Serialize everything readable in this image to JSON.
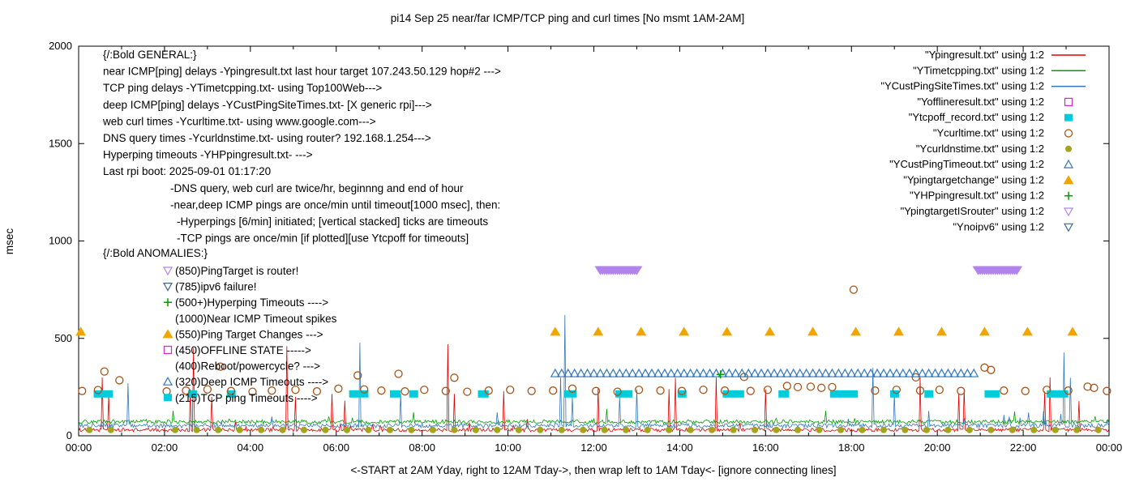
{
  "title": "pi14 Sep 25  near/far ICMP/TCP ping and curl times [No msmt 1AM-2AM]",
  "ylabel": "msec",
  "xlabel": "<-START at 2AM Yday, right to 12AM Tday->, then wrap left to 1AM Tday<- [ignore connecting lines]",
  "axes": {
    "y_ticks": [
      0,
      500,
      1000,
      1500,
      2000
    ],
    "x_tick_labels": [
      "00:00",
      "02:00",
      "04:00",
      "06:00",
      "08:00",
      "10:00",
      "12:00",
      "14:00",
      "16:00",
      "18:00",
      "20:00",
      "22:00",
      "00:00"
    ],
    "ylim": [
      0,
      2000
    ],
    "xlim_hours": [
      0,
      24
    ]
  },
  "legend": [
    {
      "key": "ypingresult",
      "label": "\"Ypingresult.txt\" using 1:2",
      "marker": "line",
      "color": "#e10000"
    },
    {
      "key": "ytimetcpping",
      "label": "\"YTimetcpping.txt\" using 1:2",
      "marker": "line",
      "color": "#009e00"
    },
    {
      "key": "ycustpingsitetimes",
      "label": "\"YCustPingSiteTimes.txt\" using 1:2",
      "marker": "line",
      "color": "#3377bb"
    },
    {
      "key": "yofflineresult",
      "label": "\"Yofflineresult.txt\" using 1:2",
      "marker": "square-open",
      "color": "#cc33cc"
    },
    {
      "key": "ytcpoff_record",
      "label": "\"Ytcpoff_record.txt\" using 1:2",
      "marker": "square-filled",
      "color": "#00ccdd"
    },
    {
      "key": "ycurltime",
      "label": "\"Ycurltime.txt\" using 1:2",
      "marker": "circle-open",
      "color": "#aa5518"
    },
    {
      "key": "ycurldnstime",
      "label": "\"Ycurldnstime.txt\" using 1:2",
      "marker": "circle-filled",
      "color": "#a3a51c"
    },
    {
      "key": "ycustpingtimeout",
      "label": "\"YCustPingTimeout.txt\" using 1:2",
      "marker": "triangle-up-open",
      "color": "#3377bb"
    },
    {
      "key": "ypingtargetchange",
      "label": "\"Ypingtargetchange\" using 1:2",
      "marker": "triangle-up-filled",
      "color": "#f0a500"
    },
    {
      "key": "yhppingresult",
      "label": "\"YHPpingresult.txt\" using 1:2",
      "marker": "plus",
      "color": "#009e00"
    },
    {
      "key": "ypingtargetisrouter",
      "label": "\"YpingtargetISrouter\" using 1:2",
      "marker": "triangle-down-open",
      "color": "#b084ec"
    },
    {
      "key": "ynoipv6",
      "label": "\"Ynoipv6\" using 1:2",
      "marker": "triangle-down-open",
      "color": "#406894"
    }
  ],
  "annotations": {
    "general": [
      {
        "t": "{/:Bold GENERAL:}",
        "i": 0
      },
      {
        "t": "near ICMP[ping] delays -Ypingresult.txt last hour target 107.243.50.129 hop#2 --->",
        "i": 0
      },
      {
        "t": "TCP ping delays -YTimetcpping.txt- using Top100Web--->",
        "i": 0
      },
      {
        "t": "deep ICMP[ping] delays -YCustPingSiteTimes.txt- [X generic rpi]--->",
        "i": 0
      },
      {
        "t": "web curl times -Ycurltime.txt- using www.google.com--->",
        "i": 0
      },
      {
        "t": "DNS query times -Ycurldnstime.txt- using router? 192.168.1.254--->",
        "i": 0
      },
      {
        "t": "Hyperping timeouts -YHPpingresult.txt- --->",
        "i": 0
      },
      {
        "t": "Last rpi boot: 2025-09-01 01:17:20",
        "i": 0
      },
      {
        "t": "-DNS query, web curl are twice/hr, beginnng and end of hour",
        "i": 1
      },
      {
        "t": "-near,deep ICMP pings are once/min until timeout[1000 msec], then:",
        "i": 1
      },
      {
        "t": "-Hyperpings [6/min] initiated; [vertical stacked] ticks are timeouts",
        "i": 2
      },
      {
        "t": "-TCP pings are once/min [if plotted][use Ytcpoff for timeouts]",
        "i": 2
      }
    ],
    "anomalies_header": "{/:Bold ANOMALIES:}",
    "anomalies": [
      {
        "icon": "triangle-down-open",
        "icon_color": "#b084ec",
        "text": "(850)PingTarget is router!"
      },
      {
        "icon": "triangle-down-open",
        "icon_color": "#406894",
        "text": "(785)ipv6 failure!"
      },
      {
        "icon": "plus",
        "icon_color": "#009e00",
        "text": "(500+)Hyperping Timeouts ---->"
      },
      {
        "icon": "none",
        "icon_color": "",
        "text": "(1000)Near ICMP Timeout spikes"
      },
      {
        "icon": "triangle-up-filled",
        "icon_color": "#f0a500",
        "text": "(550)Ping Target Changes --->"
      },
      {
        "icon": "square-open",
        "icon_color": "#cc33cc",
        "text": "(450)OFFLINE STATE ----->"
      },
      {
        "icon": "none",
        "icon_color": "",
        "text": "(400)Reboot/powercycle? --->"
      },
      {
        "icon": "triangle-up-open",
        "icon_color": "#3377bb",
        "text": "(320)Deep ICMP Timeouts ---->"
      },
      {
        "icon": "square-filled",
        "icon_color": "#00ccdd",
        "text": "(215)TCP ping Timeouts ---->"
      }
    ]
  },
  "chart_data": {
    "type": "mixed",
    "x_unit": "hours (00:00-24:00)",
    "y_unit": "msec",
    "ylim": [
      0,
      2000
    ],
    "series": [
      {
        "name": "Ypingresult (near ICMP ping)",
        "type": "line",
        "color": "#e10000",
        "baseline": 30,
        "noise": 9,
        "burst": 55,
        "spikes": [
          [
            0.55,
            300
          ],
          [
            0.7,
            210
          ],
          [
            2.6,
            238
          ],
          [
            2.67,
            450
          ],
          [
            3.1,
            200
          ],
          [
            4.85,
            460
          ],
          [
            5.05,
            200
          ],
          [
            5.9,
            215
          ],
          [
            6.2,
            180
          ],
          [
            8.6,
            470
          ],
          [
            8.75,
            215
          ],
          [
            9.9,
            230
          ],
          [
            12.1,
            248
          ],
          [
            13.75,
            240
          ],
          [
            13.9,
            298
          ],
          [
            14.85,
            300
          ],
          [
            16.0,
            238
          ],
          [
            19.6,
            298
          ],
          [
            20.5,
            215
          ],
          [
            20.62,
            240
          ],
          [
            22.5,
            228
          ],
          [
            22.62,
            300
          ],
          [
            23.3,
            178
          ]
        ]
      },
      {
        "name": "YTimetcpping (TCP ping)",
        "type": "line",
        "color": "#009e00",
        "baseline": 72,
        "noise": 10,
        "burst": 25,
        "spikes": [
          [
            2.2,
            128
          ],
          [
            7.8,
            120
          ],
          [
            12.3,
            138
          ],
          [
            17.4,
            128
          ],
          [
            21.8,
            124
          ]
        ]
      },
      {
        "name": "YCustPingSiteTimes (deep ICMP ping)",
        "type": "line",
        "color": "#3377bb",
        "baseline": 52,
        "noise": 11,
        "burst": 70,
        "spikes": [
          [
            1.15,
            270
          ],
          [
            6.55,
            478
          ],
          [
            7.5,
            215
          ],
          [
            11.22,
            298
          ],
          [
            11.32,
            620
          ],
          [
            11.5,
            200
          ],
          [
            12.6,
            198
          ],
          [
            13.0,
            238
          ],
          [
            18.5,
            348
          ],
          [
            19.0,
            215
          ],
          [
            22.95,
            428
          ],
          [
            23.1,
            298
          ]
        ]
      },
      {
        "name": "Yofflineresult (offline state)",
        "type": "points",
        "marker": "square-open",
        "color": "#cc33cc",
        "points": []
      },
      {
        "name": "Ytcpoff_record (TCP ping timeouts)",
        "type": "segments",
        "marker": "square-filled",
        "color": "#00ccdd",
        "y": 215,
        "segments": [
          [
            0.35,
            0.8
          ],
          [
            2.55,
            2.75
          ],
          [
            3.45,
            3.65
          ],
          [
            6.3,
            6.75
          ],
          [
            7.25,
            7.5
          ],
          [
            7.7,
            7.9
          ],
          [
            9.3,
            9.55
          ],
          [
            11.3,
            11.6
          ],
          [
            12.5,
            12.9
          ],
          [
            13.95,
            14.15
          ],
          [
            15.0,
            15.5
          ],
          [
            16.3,
            16.55
          ],
          [
            17.5,
            18.15
          ],
          [
            18.9,
            19.1
          ],
          [
            19.7,
            19.9
          ],
          [
            21.1,
            21.45
          ],
          [
            22.55,
            23.05
          ]
        ]
      },
      {
        "name": "Ycurltime (web curl times)",
        "type": "points",
        "marker": "circle-open",
        "color": "#aa5518",
        "points": [
          [
            0.08,
            230
          ],
          [
            0.45,
            235
          ],
          [
            0.6,
            330
          ],
          [
            0.95,
            285
          ],
          [
            2.05,
            228
          ],
          [
            2.5,
            232
          ],
          [
            3.0,
            238
          ],
          [
            3.3,
            355
          ],
          [
            3.55,
            230
          ],
          [
            4.05,
            226
          ],
          [
            4.5,
            232
          ],
          [
            5.05,
            236
          ],
          [
            5.55,
            228
          ],
          [
            6.05,
            242
          ],
          [
            6.5,
            310
          ],
          [
            6.65,
            238
          ],
          [
            7.05,
            232
          ],
          [
            7.45,
            318
          ],
          [
            7.6,
            228
          ],
          [
            8.05,
            236
          ],
          [
            8.55,
            230
          ],
          [
            8.75,
            298
          ],
          [
            9.05,
            226
          ],
          [
            9.55,
            232
          ],
          [
            10.05,
            236
          ],
          [
            10.55,
            230
          ],
          [
            11.05,
            232
          ],
          [
            11.5,
            242
          ],
          [
            12.05,
            230
          ],
          [
            12.55,
            226
          ],
          [
            13.05,
            236
          ],
          [
            13.55,
            232
          ],
          [
            14.05,
            230
          ],
          [
            14.55,
            236
          ],
          [
            15.05,
            232
          ],
          [
            15.5,
            302
          ],
          [
            15.65,
            230
          ],
          [
            16.05,
            236
          ],
          [
            16.5,
            256
          ],
          [
            16.75,
            250
          ],
          [
            17.05,
            252
          ],
          [
            17.3,
            246
          ],
          [
            17.55,
            250
          ],
          [
            18.05,
            750
          ],
          [
            18.55,
            232
          ],
          [
            19.05,
            236
          ],
          [
            19.5,
            300
          ],
          [
            19.6,
            232
          ],
          [
            20.05,
            236
          ],
          [
            20.55,
            230
          ],
          [
            21.1,
            350
          ],
          [
            21.25,
            338
          ],
          [
            21.55,
            232
          ],
          [
            22.05,
            230
          ],
          [
            22.55,
            236
          ],
          [
            23.05,
            232
          ],
          [
            23.5,
            252
          ],
          [
            23.65,
            246
          ],
          [
            23.95,
            230
          ]
        ]
      },
      {
        "name": "Ycurldnstime (DNS query times)",
        "type": "generated-points",
        "marker": "circle-filled",
        "color": "#a3a51c",
        "y": 30,
        "start": 0.25,
        "step": 0.5,
        "end": 23.8,
        "skip_from": 1.0,
        "skip_to": 2.0
      },
      {
        "name": "YCustPingTimeout (deep ICMP timeouts)",
        "type": "marker-row",
        "marker": "triangle-up-open",
        "color": "#3377bb",
        "y": 320,
        "segments": [
          [
            11.1,
            20.9
          ]
        ],
        "spacing": 0.15
      },
      {
        "name": "Ypingtargetchange (ping target changes)",
        "type": "points-y",
        "marker": "triangle-up-filled",
        "color": "#f0a500",
        "y": 535,
        "xs": [
          0.05,
          11.1,
          12.1,
          13.1,
          14.1,
          15.1,
          16.1,
          17.1,
          18.1,
          19.1,
          20.1,
          21.1,
          22.1,
          23.15
        ]
      },
      {
        "name": "YHPpingresult (hyperping timeouts)",
        "type": "points",
        "marker": "plus",
        "color": "#009e00",
        "points": [
          [
            14.95,
            315
          ]
        ]
      },
      {
        "name": "YpingtargetISrouter (ping target is router)",
        "type": "marker-row",
        "marker": "triangle-down-filled",
        "color": "#b084ec",
        "y": 850,
        "segments": [
          [
            12.15,
            13.05
          ],
          [
            20.95,
            21.9
          ]
        ],
        "spacing": 0.05
      },
      {
        "name": "Ynoipv6 (ipv6 failure)",
        "type": "points",
        "marker": "triangle-down-open",
        "color": "#406894",
        "points": []
      }
    ]
  }
}
